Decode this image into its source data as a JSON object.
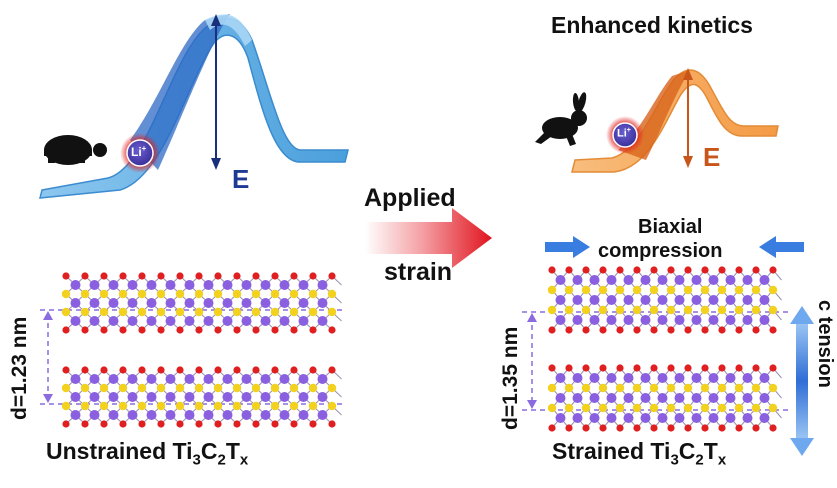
{
  "left_panel": {
    "energy_label": "E",
    "ion_label": "Li",
    "ion_charge": "+",
    "spacing_label": "d=1.23 nm",
    "caption_main": "Unstrained Ti",
    "caption_sub1": "3",
    "caption_mid": "C",
    "caption_sub2": "2",
    "caption_end": "T",
    "caption_sub3": "x"
  },
  "right_panel": {
    "title": "Enhanced kinetics",
    "energy_label": "E",
    "ion_label": "Li",
    "ion_charge": "+",
    "compression_line1": "Biaxial",
    "compression_line2": "compression",
    "tension_label": "c tension",
    "spacing_label": "d=1.35 nm",
    "caption_main": "Strained Ti",
    "caption_sub1": "3",
    "caption_mid": "C",
    "caption_sub2": "2",
    "caption_end": "T",
    "caption_sub3": "x"
  },
  "center": {
    "line1": "Applied",
    "line2": "strain"
  },
  "colors": {
    "left_barrier": "#5aa8e0",
    "right_barrier": "#f5a65b",
    "arrow_red": "#e0141e",
    "atom_purple": "#8a5fe0",
    "atom_red": "#e02020",
    "atom_yellow": "#f2d21e",
    "dashed_guide": "#8a6be0",
    "compression_arrow": "#3a7de0"
  }
}
